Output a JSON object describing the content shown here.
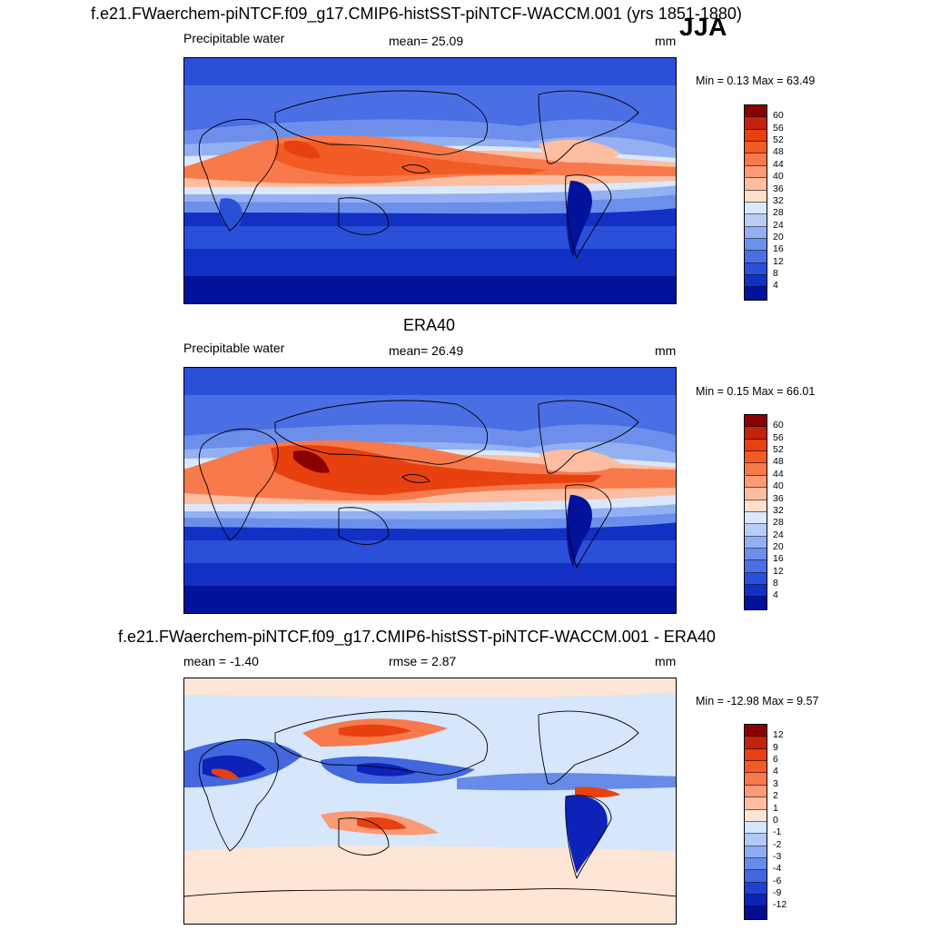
{
  "season": "JJA",
  "panels": [
    {
      "title": "f.e21.FWaerchem-piNTCF.f09_g17.CMIP6-histSST-piNTCF-WACCM.001 (yrs 1851-1880)",
      "left_label": "Precipitable water",
      "center_label": "mean=  25.09",
      "units": "mm",
      "minmax": "Min =   0.13 Max =  63.49",
      "colorbar_ticks": [
        "60",
        "56",
        "52",
        "48",
        "44",
        "40",
        "36",
        "32",
        "28",
        "24",
        "20",
        "16",
        "12",
        "8",
        "4"
      ],
      "colorbar_colors": [
        "#8b0000",
        "#c2230a",
        "#e8400f",
        "#f25c24",
        "#f8794b",
        "#fb9a75",
        "#fdbda0",
        "#fde0cc",
        "#dbe8fb",
        "#b8cdf8",
        "#93b0f3",
        "#6d8fec",
        "#4a6ee3",
        "#2a4fd8",
        "#1330c4",
        "#02129a"
      ]
    },
    {
      "title": "ERA40",
      "left_label": "Precipitable water",
      "center_label": "mean=  26.49",
      "units": "mm",
      "minmax": "Min =   0.15 Max =  66.01",
      "colorbar_ticks": [
        "60",
        "56",
        "52",
        "48",
        "44",
        "40",
        "36",
        "32",
        "28",
        "24",
        "20",
        "16",
        "12",
        "8",
        "4"
      ],
      "colorbar_colors": [
        "#8b0000",
        "#c2230a",
        "#e8400f",
        "#f25c24",
        "#f8794b",
        "#fb9a75",
        "#fdbda0",
        "#fde0cc",
        "#dbe8fb",
        "#b8cdf8",
        "#93b0f3",
        "#6d8fec",
        "#4a6ee3",
        "#2a4fd8",
        "#1330c4",
        "#02129a"
      ]
    },
    {
      "title": "f.e21.FWaerchem-piNTCF.f09_g17.CMIP6-histSST-piNTCF-WACCM.001 - ERA40",
      "left_label": "mean =  -1.40",
      "center_label": "rmse =   2.87",
      "units": "mm",
      "minmax": "Min = -12.98 Max =   9.57",
      "colorbar_ticks": [
        "12",
        "9",
        "6",
        "4",
        "3",
        "2",
        "1",
        "0",
        "-1",
        "-2",
        "-3",
        "-4",
        "-6",
        "-9",
        "-12"
      ],
      "colorbar_colors": [
        "#8b0000",
        "#c2230a",
        "#e8400f",
        "#f25c24",
        "#f8794b",
        "#fb9a75",
        "#fdbda0",
        "#fde6d6",
        "#d6e6fb",
        "#b2c9f7",
        "#8eabf2",
        "#678be9",
        "#4267df",
        "#2042d2",
        "#0c22b8",
        "#030d92"
      ]
    }
  ]
}
